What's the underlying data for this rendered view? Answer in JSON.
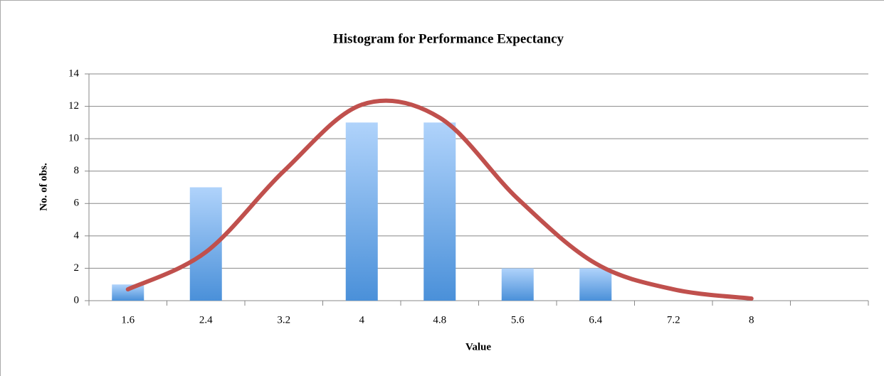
{
  "chart_data": {
    "type": "bar",
    "title": "Histogram for Performance Expectancy",
    "x_label": "Value",
    "y_label": "No. of obs.",
    "categories": [
      "1.6",
      "2.4",
      "3.2",
      "4",
      "4.8",
      "5.6",
      "6.4",
      "7.2",
      "8",
      null
    ],
    "series": [
      {
        "type": "bar",
        "color": "#4a90d9",
        "values": [
          1,
          7,
          0,
          11,
          11,
          2,
          2,
          0,
          0,
          0
        ]
      },
      {
        "type": "line",
        "color": "#c0504d",
        "values": [
          0.7,
          3.0,
          8.0,
          12.1,
          11.3,
          6.3,
          2.3,
          0.7,
          0.13,
          null
        ]
      }
    ],
    "ylim": [
      0,
      14
    ],
    "yticks": [
      0,
      2,
      4,
      6,
      8,
      10,
      12,
      14
    ],
    "grid": true
  }
}
